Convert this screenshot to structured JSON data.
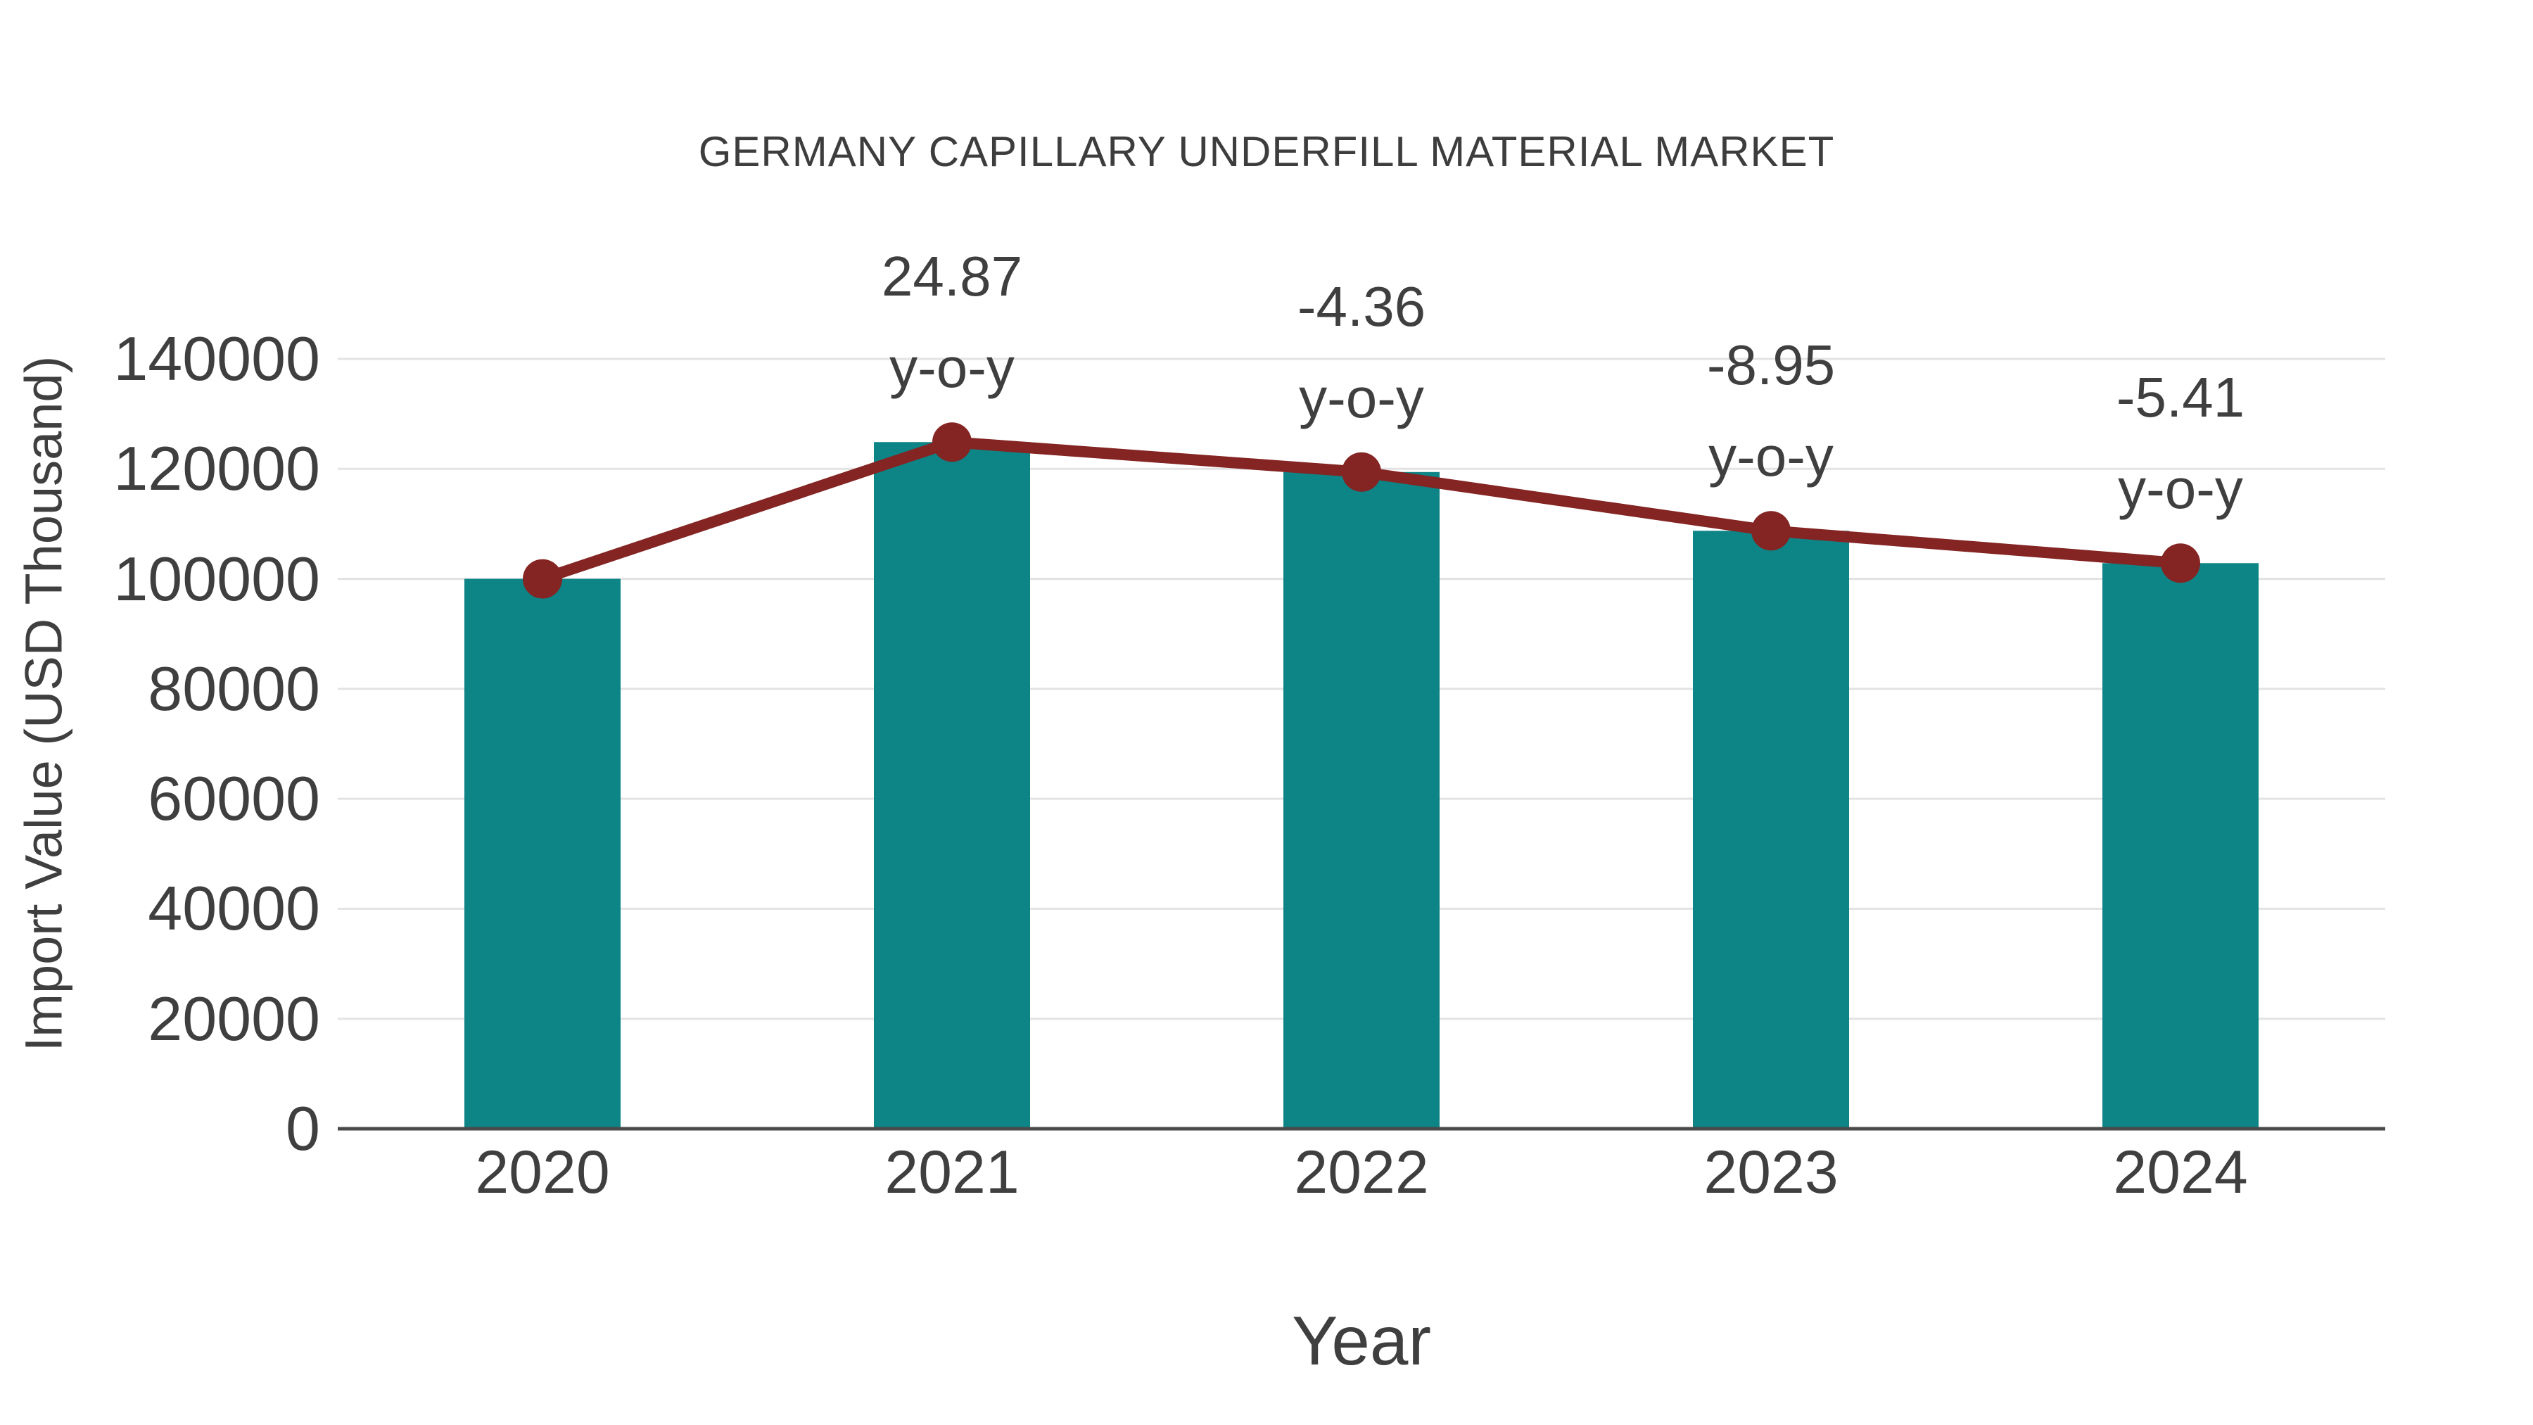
{
  "chart": {
    "title": "GERMANY CAPILLARY UNDERFILL MATERIAL MARKET",
    "x_axis_title": "Year",
    "y_axis_title": "Import Value (USD Thousand)"
  },
  "chart_data": {
    "type": "bar",
    "title": "GERMANY CAPILLARY UNDERFILL MATERIAL MARKET",
    "xlabel": "Year",
    "ylabel": "Import Value (USD Thousand)",
    "categories": [
      "2020",
      "2021",
      "2022",
      "2023",
      "2024"
    ],
    "series": [
      {
        "name": "Import Value bars",
        "type": "bar",
        "color": "#0D8486",
        "values": [
          100000,
          124870,
          119425,
          108739,
          102856
        ]
      },
      {
        "name": "Import Value trend line",
        "type": "line",
        "color": "#842423",
        "values": [
          100000,
          124870,
          119425,
          108739,
          102856
        ]
      }
    ],
    "annotations": [
      {
        "category": "2021",
        "value": "24.87",
        "suffix": "y-o-y"
      },
      {
        "category": "2022",
        "value": "-4.36",
        "suffix": "y-o-y"
      },
      {
        "category": "2023",
        "value": "-8.95",
        "suffix": "y-o-y"
      },
      {
        "category": "2024",
        "value": "-5.41",
        "suffix": "y-o-y"
      }
    ],
    "yticks": [
      0,
      20000,
      40000,
      60000,
      80000,
      100000,
      120000,
      140000
    ],
    "ylim": [
      0,
      140000
    ],
    "grid": true,
    "legend": false,
    "colors": {
      "bar": "#0D8486",
      "line": "#842423",
      "marker": "#842423",
      "text": "#3F3F3F",
      "grid": "#E3E3E3",
      "axis": "#4A4A4A",
      "background": "#FFFFFF"
    }
  }
}
